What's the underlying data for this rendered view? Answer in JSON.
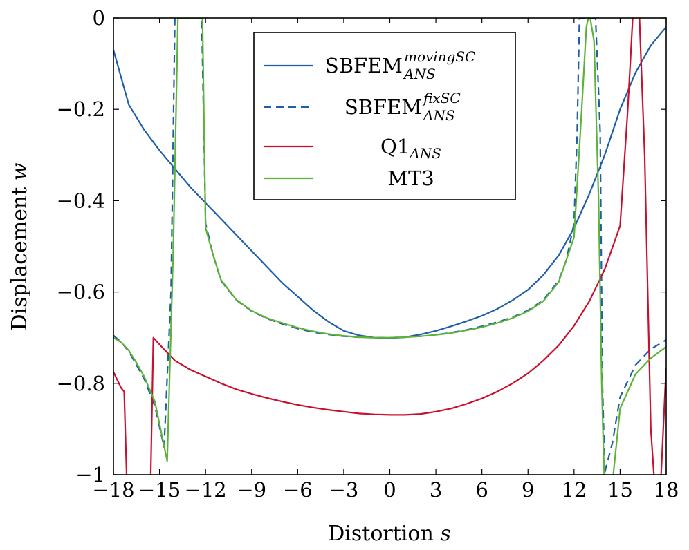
{
  "chart_data": {
    "type": "line",
    "xlabel_text": "Distortion ",
    "xlabel_var": "s",
    "ylabel_text": "Displacement ",
    "ylabel_var": "w",
    "xlim": [
      -18,
      18
    ],
    "ylim": [
      -1,
      0
    ],
    "xticks": [
      -18,
      -15,
      -12,
      -9,
      -6,
      -3,
      0,
      3,
      6,
      9,
      12,
      15,
      18
    ],
    "xtick_labels": [
      "−18",
      "−15",
      "−12",
      "−9",
      "−6",
      "−3",
      "0",
      "3",
      "6",
      "9",
      "12",
      "15",
      "18"
    ],
    "yticks": [
      -1,
      -0.8,
      -0.6,
      -0.4,
      -0.2,
      0
    ],
    "ytick_labels": [
      "−1",
      "−0.8",
      "−0.6",
      "−0.4",
      "−0.2",
      "0"
    ],
    "grid": false,
    "legend_position": "top-right",
    "series": [
      {
        "name": "SBFEM",
        "name_sub": "ANS",
        "name_sup": "movingSC",
        "color": "#1f5fa8",
        "dash": "solid",
        "x": [
          -18,
          -17,
          -16,
          -15,
          -14,
          -13,
          -12,
          -11,
          -10,
          -9,
          -8,
          -7,
          -6,
          -5,
          -4,
          -3,
          -2,
          -1,
          0,
          1,
          2,
          3,
          4,
          5,
          6,
          7,
          8,
          9,
          10,
          11,
          12,
          13,
          14,
          15,
          16,
          17,
          18
        ],
        "y": [
          -0.07,
          -0.19,
          -0.245,
          -0.29,
          -0.33,
          -0.37,
          -0.405,
          -0.44,
          -0.475,
          -0.51,
          -0.545,
          -0.58,
          -0.61,
          -0.64,
          -0.665,
          -0.685,
          -0.695,
          -0.7,
          -0.701,
          -0.699,
          -0.693,
          -0.685,
          -0.675,
          -0.664,
          -0.652,
          -0.637,
          -0.618,
          -0.595,
          -0.563,
          -0.52,
          -0.46,
          -0.385,
          -0.3,
          -0.2,
          -0.12,
          -0.06,
          -0.02
        ]
      },
      {
        "name": "SBFEM",
        "name_sub": "ANS",
        "name_sup": "fixSC",
        "color": "#1f5fa8",
        "dash": "dashed",
        "x": [
          -18,
          -17.5,
          -17,
          -16.5,
          -16,
          -15.3,
          -14.7,
          -14.25,
          -14,
          -13.4,
          -13,
          -12.7,
          -12.5,
          -12.4,
          -12.25,
          -12,
          -11.5,
          -11,
          -10,
          -9,
          -8,
          -7,
          -6,
          -5,
          -4,
          -3,
          -2,
          -1,
          0,
          1,
          2,
          3,
          4,
          5,
          6,
          7,
          8,
          9,
          10,
          11,
          11.5,
          12,
          12.2,
          12.35,
          12.5,
          13,
          13.4,
          13.7,
          13.85,
          14,
          14.5,
          15,
          16,
          17,
          18
        ],
        "y": [
          -0.695,
          -0.71,
          -0.73,
          -0.76,
          -0.79,
          -0.85,
          -0.94,
          -0.6,
          -0.0,
          -0.0,
          -0.0,
          -0.0,
          -0.0,
          -0.0,
          -0.0,
          -0.45,
          -0.52,
          -0.575,
          -0.618,
          -0.642,
          -0.658,
          -0.67,
          -0.68,
          -0.688,
          -0.693,
          -0.697,
          -0.699,
          -0.7,
          -0.7,
          -0.699,
          -0.697,
          -0.694,
          -0.689,
          -0.683,
          -0.675,
          -0.666,
          -0.655,
          -0.64,
          -0.618,
          -0.575,
          -0.53,
          -0.45,
          -0.25,
          -0.0,
          -0.0,
          -0.0,
          -0.0,
          -0.25,
          -0.8,
          -0.995,
          -0.93,
          -0.83,
          -0.76,
          -0.725,
          -0.705
        ]
      },
      {
        "name": "Q1",
        "name_sub": "ANS",
        "name_sup": "",
        "color": "#c8102e",
        "dash": "solid",
        "x": [
          -18,
          -17.5,
          -17.3,
          -17.1,
          -16.9,
          -16.2,
          -15.6,
          -15.4,
          -15,
          -14,
          -13,
          -12,
          -11,
          -10,
          -9,
          -8,
          -7,
          -6,
          -5,
          -4,
          -3,
          -2,
          -1,
          0,
          1,
          2,
          3,
          4,
          5,
          6,
          7,
          8,
          9,
          10,
          11,
          12,
          13,
          14,
          15,
          15.5,
          15.9,
          16.2,
          16.6,
          17.0,
          17.3,
          17.6,
          18
        ],
        "y": [
          -0.775,
          -0.81,
          -0.818,
          -1.05,
          -1.1,
          -1.1,
          -1.05,
          -0.7,
          -0.715,
          -0.75,
          -0.77,
          -0.785,
          -0.8,
          -0.813,
          -0.823,
          -0.832,
          -0.84,
          -0.847,
          -0.853,
          -0.858,
          -0.862,
          -0.866,
          -0.868,
          -0.869,
          -0.869,
          -0.867,
          -0.862,
          -0.855,
          -0.845,
          -0.833,
          -0.818,
          -0.8,
          -0.778,
          -0.75,
          -0.717,
          -0.674,
          -0.62,
          -0.55,
          -0.455,
          -0.2,
          0.05,
          0.05,
          -0.3,
          -0.9,
          -1.05,
          -1.05,
          -0.765
        ]
      },
      {
        "name": "MT3",
        "name_sub": "",
        "name_sup": "",
        "color": "#5db336",
        "dash": "solid",
        "x": [
          -18,
          -17.5,
          -17,
          -16.5,
          -16,
          -15.3,
          -14.5,
          -14.1,
          -13.8,
          -13.4,
          -13,
          -12.7,
          -12.4,
          -12.2,
          -12,
          -11.5,
          -11,
          -10,
          -9,
          -8,
          -7,
          -6,
          -5,
          -4,
          -3,
          -2,
          -1,
          0,
          1,
          2,
          3,
          4,
          5,
          6,
          7,
          8,
          9,
          10,
          11,
          11.5,
          12,
          12.5,
          12.8,
          13.0,
          13.3,
          13.6,
          13.8,
          14.0,
          14.4,
          15,
          16,
          17,
          18
        ],
        "y": [
          -0.7,
          -0.71,
          -0.728,
          -0.755,
          -0.785,
          -0.84,
          -0.97,
          -0.5,
          0.0,
          0.0,
          0.0,
          0.0,
          0.0,
          0.0,
          -0.46,
          -0.52,
          -0.573,
          -0.617,
          -0.641,
          -0.657,
          -0.668,
          -0.678,
          -0.686,
          -0.692,
          -0.696,
          -0.699,
          -0.7,
          -0.7,
          -0.699,
          -0.697,
          -0.694,
          -0.69,
          -0.684,
          -0.677,
          -0.668,
          -0.657,
          -0.642,
          -0.62,
          -0.578,
          -0.53,
          -0.48,
          -0.2,
          -0.02,
          0.01,
          -0.05,
          -0.4,
          -0.8,
          -1.05,
          -1.05,
          -0.855,
          -0.78,
          -0.745,
          -0.72
        ]
      }
    ]
  }
}
